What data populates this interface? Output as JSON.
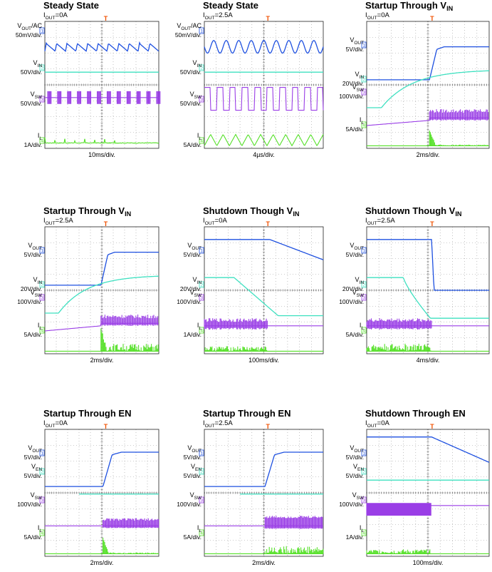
{
  "colors": {
    "vout": "#1e50e0",
    "vin": "#3ee0c0",
    "vsw": "#9a3ee6",
    "il": "#55e028",
    "trigger": "#f05000",
    "grid": "#9a9a9a"
  },
  "chart_data": [
    {
      "type": "line",
      "title": "Steady State",
      "subtitle": {
        "name": "I",
        "sub": "OUT",
        "value": "=0A"
      },
      "xlabel": "10ms/div.",
      "channels": [
        {
          "key": "vout",
          "name": "V",
          "sub": "OUT",
          "suffix": "/AC",
          "scale": "50mV/div.",
          "marker": "1"
        },
        {
          "key": "vin",
          "name": "V",
          "sub": "IN",
          "suffix": "",
          "scale": "50V/div.",
          "marker": "2"
        },
        {
          "key": "vsw",
          "name": "V",
          "sub": "SW",
          "suffix": "",
          "scale": "50V/div.",
          "marker": "3"
        },
        {
          "key": "il",
          "name": "I",
          "sub": "L",
          "suffix": "",
          "scale": "1A/div.",
          "marker": "4"
        }
      ]
    },
    {
      "type": "line",
      "title": "Steady State",
      "subtitle": {
        "name": "I",
        "sub": "OUT",
        "value": "=2.5A"
      },
      "xlabel": "4µs/div.",
      "channels": [
        {
          "key": "vout",
          "name": "V",
          "sub": "OUT",
          "suffix": "/AC",
          "scale": "50mV/div.",
          "marker": "1"
        },
        {
          "key": "vin",
          "name": "V",
          "sub": "IN",
          "suffix": "",
          "scale": "50V/div.",
          "marker": "2"
        },
        {
          "key": "vsw",
          "name": "V",
          "sub": "SW",
          "suffix": "",
          "scale": "50V/div.",
          "marker": "3"
        },
        {
          "key": "il",
          "name": "I",
          "sub": "L",
          "suffix": "",
          "scale": "5A/div.",
          "marker": "4"
        }
      ]
    },
    {
      "type": "line",
      "title": "Startup Through V",
      "title_sub": "IN",
      "subtitle": {
        "name": "I",
        "sub": "OUT",
        "value": "=0A"
      },
      "xlabel": "2ms/div.",
      "channels": [
        {
          "key": "vout",
          "name": "V",
          "sub": "OUT",
          "suffix": "",
          "scale": "5V/div.",
          "marker": "1"
        },
        {
          "key": "vin",
          "name": "V",
          "sub": "IN",
          "suffix": "",
          "scale": "20V/div.",
          "marker": "2"
        },
        {
          "key": "vsw",
          "name": "V",
          "sub": "SW",
          "suffix": "",
          "scale": "100V/div.",
          "marker": "3"
        },
        {
          "key": "il",
          "name": "I",
          "sub": "L",
          "suffix": "",
          "scale": "5A/div.",
          "marker": "4"
        }
      ]
    },
    {
      "type": "line",
      "title": "Startup Through V",
      "title_sub": "IN",
      "subtitle": {
        "name": "I",
        "sub": "OUT",
        "value": "=2.5A"
      },
      "xlabel": "2ms/div.",
      "channels": [
        {
          "key": "vout",
          "name": "V",
          "sub": "OUT",
          "suffix": "",
          "scale": "5V/div.",
          "marker": "1"
        },
        {
          "key": "vin",
          "name": "V",
          "sub": "IN",
          "suffix": "",
          "scale": "20V/div.",
          "marker": "2"
        },
        {
          "key": "vsw",
          "name": "V",
          "sub": "SW",
          "suffix": "",
          "scale": "100V/div.",
          "marker": "3"
        },
        {
          "key": "il",
          "name": "I",
          "sub": "L",
          "suffix": "",
          "scale": "5A/div.",
          "marker": "4"
        }
      ]
    },
    {
      "type": "line",
      "title": "Shutdown Though V",
      "title_sub": "IN",
      "subtitle": {
        "name": "I",
        "sub": "OUT",
        "value": "=0A"
      },
      "xlabel": "100ms/div.",
      "channels": [
        {
          "key": "vout",
          "name": "V",
          "sub": "OUT",
          "suffix": "",
          "scale": "5V/div.",
          "marker": "1"
        },
        {
          "key": "vin",
          "name": "V",
          "sub": "IN",
          "suffix": "",
          "scale": "20V/div.",
          "marker": "2"
        },
        {
          "key": "vsw",
          "name": "V",
          "sub": "SW",
          "suffix": "",
          "scale": "100V/div.",
          "marker": "3"
        },
        {
          "key": "il",
          "name": "I",
          "sub": "L",
          "suffix": "",
          "scale": "1A/div.",
          "marker": "4"
        }
      ]
    },
    {
      "type": "line",
      "title": "Shutdown Though V",
      "title_sub": "IN",
      "subtitle": {
        "name": "I",
        "sub": "OUT",
        "value": "=2.5A"
      },
      "xlabel": "4ms/div.",
      "channels": [
        {
          "key": "vout",
          "name": "V",
          "sub": "OUT",
          "suffix": "",
          "scale": "5V/div.",
          "marker": "1"
        },
        {
          "key": "vin",
          "name": "V",
          "sub": "IN",
          "suffix": "",
          "scale": "20V/div.",
          "marker": "2"
        },
        {
          "key": "vsw",
          "name": "V",
          "sub": "SW",
          "suffix": "",
          "scale": "100V/div.",
          "marker": "3"
        },
        {
          "key": "il",
          "name": "I",
          "sub": "L",
          "suffix": "",
          "scale": "5A/div.",
          "marker": "4"
        }
      ]
    },
    {
      "type": "line",
      "title": "Startup Through EN",
      "subtitle": {
        "name": "I",
        "sub": "OUT",
        "value": "=0A"
      },
      "xlabel": "2ms/div.",
      "channels": [
        {
          "key": "vout",
          "name": "V",
          "sub": "OUT",
          "suffix": "",
          "scale": "5V/div.",
          "marker": "1"
        },
        {
          "key": "vin",
          "name": "V",
          "sub": "EN",
          "suffix": "",
          "scale": "5V/div.",
          "marker": "2"
        },
        {
          "key": "vsw",
          "name": "V",
          "sub": "SW",
          "suffix": "",
          "scale": "100V/div.",
          "marker": "3"
        },
        {
          "key": "il",
          "name": "I",
          "sub": "L",
          "suffix": "",
          "scale": "5A/div.",
          "marker": "4"
        }
      ]
    },
    {
      "type": "line",
      "title": "Startup Through EN",
      "subtitle": {
        "name": "I",
        "sub": "OUT",
        "value": "=2.5A"
      },
      "xlabel": "2ms/div.",
      "channels": [
        {
          "key": "vout",
          "name": "V",
          "sub": "OUT",
          "suffix": "",
          "scale": "5V/div.",
          "marker": "1"
        },
        {
          "key": "vin",
          "name": "V",
          "sub": "EN",
          "suffix": "",
          "scale": "5V/div.",
          "marker": "2"
        },
        {
          "key": "vsw",
          "name": "V",
          "sub": "SW",
          "suffix": "",
          "scale": "100V/div.",
          "marker": "3"
        },
        {
          "key": "il",
          "name": "I",
          "sub": "L",
          "suffix": "",
          "scale": "5A/div.",
          "marker": "4"
        }
      ]
    },
    {
      "type": "line",
      "title": "Shutdown Through EN",
      "subtitle": {
        "name": "I",
        "sub": "OUT",
        "value": "=0A"
      },
      "xlabel": "100ms/div.",
      "channels": [
        {
          "key": "vout",
          "name": "V",
          "sub": "OUT",
          "suffix": "",
          "scale": "5V/div.",
          "marker": "1"
        },
        {
          "key": "vin",
          "name": "V",
          "sub": "EN",
          "suffix": "",
          "scale": "5V/div.",
          "marker": "2"
        },
        {
          "key": "vsw",
          "name": "V",
          "sub": "SW",
          "suffix": "",
          "scale": "100V/div.",
          "marker": "3"
        },
        {
          "key": "il",
          "name": "I",
          "sub": "L",
          "suffix": "",
          "scale": "1A/div.",
          "marker": "4"
        }
      ]
    }
  ]
}
